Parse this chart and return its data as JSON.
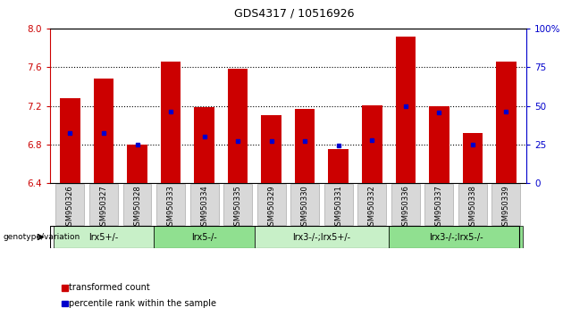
{
  "title": "GDS4317 / 10516926",
  "samples": [
    "GSM950326",
    "GSM950327",
    "GSM950328",
    "GSM950333",
    "GSM950334",
    "GSM950335",
    "GSM950329",
    "GSM950330",
    "GSM950331",
    "GSM950332",
    "GSM950336",
    "GSM950337",
    "GSM950338",
    "GSM950339"
  ],
  "bar_bottoms": [
    6.4,
    6.4,
    6.4,
    6.4,
    6.4,
    6.4,
    6.4,
    6.4,
    6.4,
    6.4,
    6.4,
    6.4,
    6.4,
    6.4
  ],
  "bar_tops": [
    7.28,
    7.48,
    6.8,
    7.66,
    7.19,
    7.58,
    7.1,
    7.17,
    6.75,
    7.21,
    7.92,
    7.2,
    6.92,
    7.66
  ],
  "percentile_values": [
    6.92,
    6.92,
    6.8,
    7.14,
    6.88,
    6.84,
    6.84,
    6.84,
    6.79,
    6.85,
    7.2,
    7.13,
    6.8,
    7.14
  ],
  "ylim_left": [
    6.4,
    8.0
  ],
  "ylim_right": [
    0,
    100
  ],
  "yticks_left": [
    6.4,
    6.8,
    7.2,
    7.6,
    8.0
  ],
  "yticks_right": [
    0,
    25,
    50,
    75,
    100
  ],
  "ytick_labels_right": [
    "0",
    "25",
    "50",
    "75",
    "100%"
  ],
  "bar_color": "#cc0000",
  "percentile_color": "#0000cc",
  "bar_width": 0.6,
  "groups": [
    {
      "label": "lrx5+/-",
      "start": 0,
      "end": 3,
      "color": "#c8f0c8"
    },
    {
      "label": "lrx5-/-",
      "start": 3,
      "end": 6,
      "color": "#90e090"
    },
    {
      "label": "lrx3-/-;lrx5+/-",
      "start": 6,
      "end": 10,
      "color": "#c8f0c8"
    },
    {
      "label": "lrx3-/-;lrx5-/-",
      "start": 10,
      "end": 14,
      "color": "#90e090"
    }
  ],
  "legend_items": [
    {
      "label": "transformed count",
      "color": "#cc0000"
    },
    {
      "label": "percentile rank within the sample",
      "color": "#0000cc"
    }
  ],
  "genotype_label": "genotype/variation",
  "left_axis_color": "#cc0000",
  "right_axis_color": "#0000cc",
  "background_color": "#ffffff",
  "sample_box_color": "#d8d8d8",
  "sample_box_edge": "#aaaaaa"
}
